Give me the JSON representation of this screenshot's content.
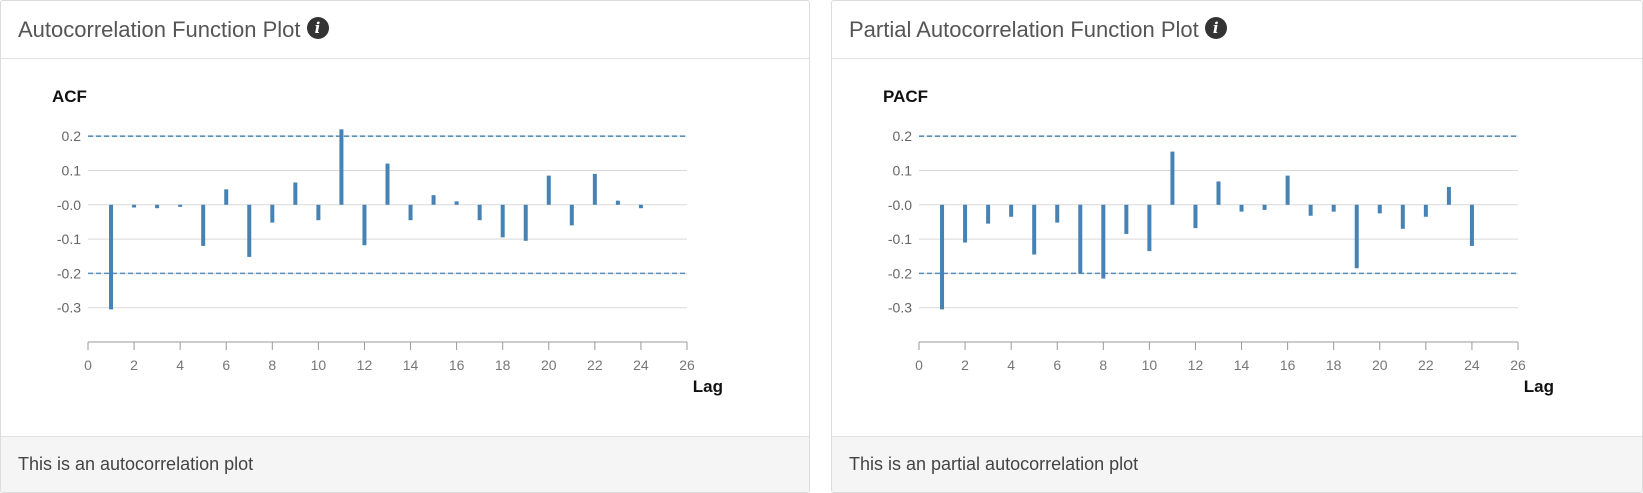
{
  "acf_panel": {
    "header": "Autocorrelation Function Plot",
    "footer": "This is an autocorrelation plot"
  },
  "pacf_panel": {
    "header": "Partial Autocorrelation Function Plot",
    "footer": "This is an partial autocorrelation plot"
  },
  "icons": {
    "info": "info-circle-icon"
  },
  "colors": {
    "bar": "#4682b4",
    "confidence": "#5b8fb9",
    "grid": "#d9d9d9"
  },
  "chart_data": [
    {
      "type": "bar",
      "title": "ACF",
      "xlabel": "Lag",
      "ylabel": "",
      "xlim": [
        0,
        26
      ],
      "ylim": [
        -0.4,
        0.25
      ],
      "x_ticks": [
        0,
        2,
        4,
        6,
        8,
        10,
        12,
        14,
        16,
        18,
        20,
        22,
        24,
        26
      ],
      "y_ticks": [
        0.2,
        0.1,
        0.0,
        -0.1,
        -0.2,
        -0.3
      ],
      "y_tick_labels": [
        "0.2",
        "0.1",
        "-0.0",
        "-0.1",
        "-0.2",
        "-0.3"
      ],
      "confidence_bounds": [
        0.2,
        -0.2
      ],
      "x": [
        1,
        2,
        3,
        4,
        5,
        6,
        7,
        8,
        9,
        10,
        11,
        12,
        13,
        14,
        15,
        16,
        17,
        18,
        19,
        20,
        21,
        22,
        23,
        24
      ],
      "values": [
        -0.305,
        -0.008,
        -0.01,
        -0.006,
        -0.12,
        0.045,
        -0.152,
        -0.052,
        0.065,
        -0.045,
        0.22,
        -0.118,
        0.12,
        -0.045,
        0.028,
        0.01,
        -0.045,
        -0.095,
        -0.105,
        0.085,
        -0.06,
        0.09,
        0.012,
        -0.01
      ]
    },
    {
      "type": "bar",
      "title": "PACF",
      "xlabel": "Lag",
      "ylabel": "",
      "xlim": [
        0,
        26
      ],
      "ylim": [
        -0.4,
        0.25
      ],
      "x_ticks": [
        0,
        2,
        4,
        6,
        8,
        10,
        12,
        14,
        16,
        18,
        20,
        22,
        24,
        26
      ],
      "y_ticks": [
        0.2,
        0.1,
        0.0,
        -0.1,
        -0.2,
        -0.3
      ],
      "y_tick_labels": [
        "0.2",
        "0.1",
        "-0.0",
        "-0.1",
        "-0.2",
        "-0.3"
      ],
      "confidence_bounds": [
        0.2,
        -0.2
      ],
      "x": [
        1,
        2,
        3,
        4,
        5,
        6,
        7,
        8,
        9,
        10,
        11,
        12,
        13,
        14,
        15,
        16,
        17,
        18,
        19,
        20,
        21,
        22,
        23,
        24
      ],
      "values": [
        -0.305,
        -0.11,
        -0.055,
        -0.035,
        -0.145,
        -0.052,
        -0.2,
        -0.215,
        -0.085,
        -0.135,
        0.155,
        -0.068,
        0.068,
        -0.02,
        -0.015,
        0.085,
        -0.032,
        -0.02,
        -0.185,
        -0.025,
        -0.07,
        -0.035,
        0.052,
        -0.12
      ]
    }
  ]
}
